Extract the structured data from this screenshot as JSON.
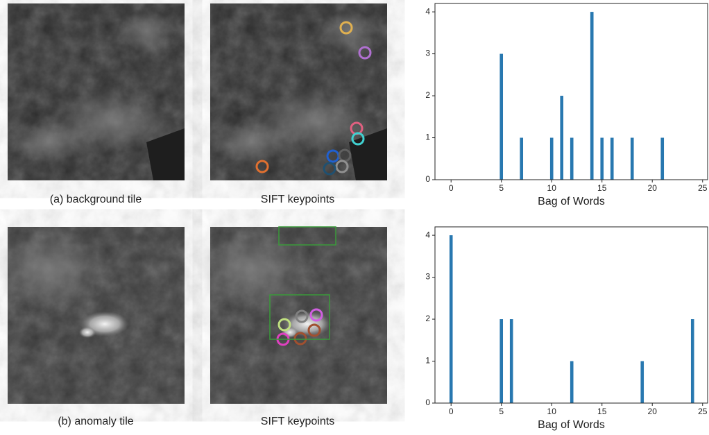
{
  "captions": [
    "(a) background tile",
    "SIFT keypoints",
    "(b) anomaly tile",
    "SIFT keypoints"
  ],
  "chart_data": [
    {
      "type": "bar",
      "xlabel": "Bag of Words",
      "color": "#2878b0",
      "x": [
        5,
        7,
        10,
        11,
        12,
        14,
        15,
        16,
        18,
        21
      ],
      "values": [
        3,
        1,
        1,
        2,
        1,
        4,
        1,
        1,
        1,
        1
      ],
      "xlim": [
        -1.6,
        25.5
      ],
      "ylim": [
        0,
        4.2
      ],
      "xticks": [
        0,
        5,
        10,
        15,
        20,
        25
      ],
      "yticks": [
        0,
        1,
        2,
        3,
        4
      ]
    },
    {
      "type": "bar",
      "xlabel": "Bag of Words",
      "color": "#2878b0",
      "x": [
        0,
        5,
        6,
        12,
        19,
        24
      ],
      "values": [
        4,
        2,
        2,
        1,
        1,
        2
      ],
      "xlim": [
        -1.6,
        25.5
      ],
      "ylim": [
        0,
        4.2
      ],
      "xticks": [
        0,
        5,
        10,
        15,
        20,
        25
      ],
      "yticks": [
        0,
        1,
        2,
        3,
        4
      ]
    }
  ]
}
